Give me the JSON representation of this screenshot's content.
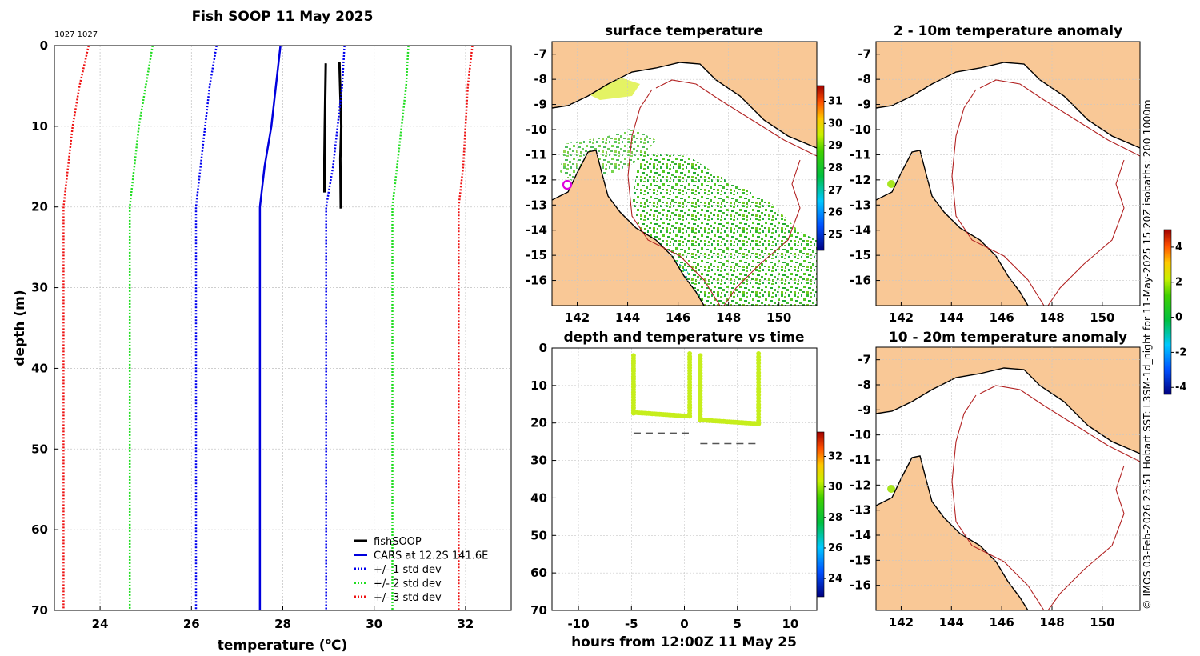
{
  "chart_data": [
    {
      "type": "line",
      "title": "Fish SOOP 11 May 2025",
      "corner_label": "1027 1027",
      "xlabel": "temperature (",
      "xlabel_sup": "o",
      "xlabel_end": "C)",
      "ylabel": "depth (m)",
      "xlim": [
        23,
        33
      ],
      "ylim": [
        70,
        0
      ],
      "xticks": [
        "24",
        "26",
        "28",
        "30",
        "32"
      ],
      "xtick_values": [
        24,
        26,
        28,
        30,
        32
      ],
      "yticks": [
        "0",
        "10",
        "20",
        "30",
        "40",
        "50",
        "60",
        "70"
      ],
      "ytick_values": [
        0,
        10,
        20,
        30,
        40,
        50,
        60,
        70
      ],
      "series": [
        {
          "name": "fishSOOP",
          "color": "#000000",
          "style": "solid",
          "width": 3,
          "points": [
            [
              28.94,
              2.2
            ],
            [
              28.93,
              6
            ],
            [
              28.92,
              10
            ],
            [
              28.91,
              14
            ],
            [
              28.91,
              18.2
            ]
          ]
        },
        {
          "name": "fishSOOP",
          "color": "#000000",
          "style": "solid",
          "width": 3,
          "legend": false,
          "points": [
            [
              29.24,
              2
            ],
            [
              29.26,
              6
            ],
            [
              29.28,
              10
            ],
            [
              29.26,
              14
            ],
            [
              29.27,
              20.2
            ]
          ]
        },
        {
          "name": "CARS at 12.2S 141.6E",
          "color": "#0000dd",
          "style": "solid",
          "width": 2.5,
          "points": [
            [
              27.95,
              0
            ],
            [
              27.85,
              5
            ],
            [
              27.75,
              10
            ],
            [
              27.6,
              15
            ],
            [
              27.5,
              20
            ],
            [
              27.5,
              70
            ]
          ]
        },
        {
          "name": "+/- 1 std dev",
          "color": "#0000ee",
          "style": "dot",
          "width": 2.5,
          "points": [
            [
              26.55,
              0
            ],
            [
              26.4,
              5
            ],
            [
              26.3,
              10
            ],
            [
              26.2,
              15
            ],
            [
              26.1,
              20
            ],
            [
              26.1,
              70
            ]
          ]
        },
        {
          "name": "+/- 1 std dev",
          "color": "#0000ee",
          "style": "dot",
          "width": 2.5,
          "legend": false,
          "points": [
            [
              29.35,
              0
            ],
            [
              29.3,
              5
            ],
            [
              29.2,
              10
            ],
            [
              29.1,
              15
            ],
            [
              28.95,
              20
            ],
            [
              28.95,
              70
            ]
          ]
        },
        {
          "name": "+/- 2 std dev",
          "color": "#22dd22",
          "style": "dot",
          "width": 2.5,
          "points": [
            [
              25.15,
              0
            ],
            [
              25.0,
              5
            ],
            [
              24.85,
              10
            ],
            [
              24.75,
              15
            ],
            [
              24.65,
              20
            ],
            [
              24.65,
              70
            ]
          ]
        },
        {
          "name": "+/- 2 std dev",
          "color": "#22dd22",
          "style": "dot",
          "width": 2.5,
          "legend": false,
          "points": [
            [
              30.75,
              0
            ],
            [
              30.7,
              5
            ],
            [
              30.6,
              10
            ],
            [
              30.5,
              15
            ],
            [
              30.4,
              20
            ],
            [
              30.4,
              70
            ]
          ]
        },
        {
          "name": "+/- 3 std dev",
          "color": "#ee1111",
          "style": "dot",
          "width": 2.5,
          "points": [
            [
              23.75,
              0
            ],
            [
              23.55,
              5
            ],
            [
              23.4,
              10
            ],
            [
              23.3,
              15
            ],
            [
              23.2,
              20
            ],
            [
              23.2,
              70
            ]
          ]
        },
        {
          "name": "+/- 3 std dev",
          "color": "#ee1111",
          "style": "dot",
          "width": 2.5,
          "legend": false,
          "points": [
            [
              32.15,
              0
            ],
            [
              32.05,
              5
            ],
            [
              32.0,
              10
            ],
            [
              31.95,
              15
            ],
            [
              31.85,
              20
            ],
            [
              31.85,
              70
            ]
          ]
        }
      ],
      "legend": {
        "position": "lower-right",
        "entries": [
          {
            "label": "fishSOOP",
            "color": "#000000",
            "style": "solid"
          },
          {
            "label": "CARS at 12.2S 141.6E",
            "color": "#0000dd",
            "style": "solid"
          },
          {
            "label": "+/- 1 std dev",
            "color": "#0000ee",
            "style": "dot"
          },
          {
            "label": "+/- 2 std dev",
            "color": "#22dd22",
            "style": "dot"
          },
          {
            "label": "+/- 3 std dev",
            "color": "#ee1111",
            "style": "dot"
          }
        ]
      }
    },
    {
      "type": "heatmap",
      "title": "surface temperature",
      "xlim": [
        141,
        151.5
      ],
      "ylim": [
        -17,
        -6.5
      ],
      "xticks": [
        "142",
        "144",
        "146",
        "148",
        "150"
      ],
      "xtick_values": [
        142,
        144,
        146,
        148,
        150
      ],
      "yticks": [
        "-7",
        "-8",
        "-9",
        "-10",
        "-11",
        "-12",
        "-13",
        "-14",
        "-15",
        "-16"
      ],
      "ytick_values": [
        -7,
        -8,
        -9,
        -10,
        -11,
        -12,
        -13,
        -14,
        -15,
        -16
      ],
      "colorbar": {
        "range": [
          24.3,
          31.7
        ],
        "ticks": [
          "31",
          "30",
          "29",
          "28",
          "27",
          "26",
          "25"
        ],
        "tick_values": [
          31,
          30,
          29,
          28,
          27,
          26,
          25
        ]
      },
      "marker": {
        "lon": 141.6,
        "lat": -12.2,
        "color": "#dd00dd"
      }
    },
    {
      "type": "heatmap",
      "title": "2 - 10m temperature anomaly",
      "xlim": [
        141,
        151.5
      ],
      "ylim": [
        -17,
        -6.5
      ],
      "xticks": [
        "142",
        "144",
        "146",
        "148",
        "150"
      ],
      "xtick_values": [
        142,
        144,
        146,
        148,
        150
      ],
      "yticks": [
        "-7",
        "-8",
        "-9",
        "-10",
        "-11",
        "-12",
        "-13",
        "-14",
        "-15",
        "-16"
      ],
      "ytick_values": [
        -7,
        -8,
        -9,
        -10,
        -11,
        -12,
        -13,
        -14,
        -15,
        -16
      ],
      "colorbar": {
        "range": [
          -4.4,
          5
        ],
        "ticks": [
          "4",
          "2",
          "0",
          "-2",
          "-4"
        ],
        "tick_values": [
          4,
          2,
          0,
          -2,
          -4
        ]
      },
      "marker": {
        "lon": 141.6,
        "lat": -12.2,
        "value": 0.6
      }
    },
    {
      "type": "scatter",
      "title": "depth and temperature vs time",
      "xlabel": "hours from 12:00Z 11 May 25",
      "xlim": [
        -12.5,
        12.5
      ],
      "ylim": [
        70,
        0
      ],
      "xticks": [
        "-10",
        "-5",
        "0",
        "5",
        "10"
      ],
      "xtick_values": [
        -10,
        -5,
        0,
        5,
        10
      ],
      "yticks": [
        "0",
        "10",
        "20",
        "30",
        "40",
        "50",
        "60",
        "70"
      ],
      "ytick_values": [
        0,
        10,
        20,
        30,
        40,
        50,
        60,
        70
      ],
      "colorbar": {
        "range": [
          22.8,
          33.6
        ],
        "ticks": [
          "32",
          "30",
          "28",
          "26",
          "24"
        ],
        "tick_values": [
          32,
          30,
          28,
          26,
          24
        ]
      },
      "casts": [
        {
          "t_start": -4.8,
          "t_end": 0.5,
          "max_depth": 18.2,
          "temperature": 29.1,
          "bottom_depth": 22.7
        },
        {
          "t_start": 1.5,
          "t_end": 7.0,
          "max_depth": 20.2,
          "temperature": 29.2,
          "bottom_depth": 25.5
        }
      ]
    },
    {
      "type": "heatmap",
      "title": "10 - 20m temperature anomaly",
      "xlim": [
        141,
        151.5
      ],
      "ylim": [
        -17,
        -6.5
      ],
      "xticks": [
        "142",
        "144",
        "146",
        "148",
        "150"
      ],
      "xtick_values": [
        142,
        144,
        146,
        148,
        150
      ],
      "yticks": [
        "-7",
        "-8",
        "-9",
        "-10",
        "-11",
        "-12",
        "-13",
        "-14",
        "-15",
        "-16"
      ],
      "ytick_values": [
        -7,
        -8,
        -9,
        -10,
        -11,
        -12,
        -13,
        -14,
        -15,
        -16
      ],
      "marker": {
        "lon": 141.6,
        "lat": -12.2,
        "value": 0.6
      }
    }
  ],
  "side_note": "© IMOS 03-Feb-2026 23:51 Hobart SST: L3SM-1d_night for 11-May-2025 15:20Z isobaths: 200  1000m",
  "colors": {
    "land": "#f9c896",
    "isobath": "#b22222",
    "coast": "#000000",
    "grid": "#c8c8c8",
    "dash": "#555555"
  }
}
